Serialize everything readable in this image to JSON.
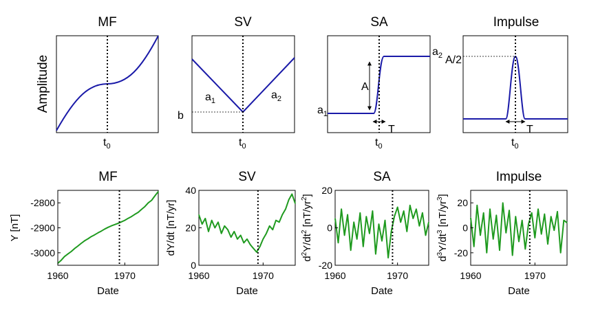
{
  "colors": {
    "top_line": "#1a1aa8",
    "bottom_line": "#1f9a1f",
    "frame": "#000000",
    "marker": "#000000"
  },
  "top_row": {
    "titles": [
      "MF",
      "SV",
      "SA",
      "Impulse"
    ],
    "ylabel": "Amplitude",
    "t0_label": "t0",
    "labels": {
      "a1": "a1",
      "a2": "a2",
      "b": "b",
      "A": "A",
      "T": "T",
      "A_half": "A/2"
    }
  },
  "chart_data": [
    {
      "type": "line",
      "title": "MF",
      "xlabel": "Date",
      "ylabel": "Y [nT]",
      "xlim": [
        1960,
        1975
      ],
      "ylim": [
        -3050,
        -2750
      ],
      "xticks": [
        1960,
        1970
      ],
      "yticks": [
        -3000,
        -2900,
        -2800
      ],
      "vline": 1969.2,
      "series": [
        {
          "values": [
            [
              1960,
              -3042
            ],
            [
              1960.5,
              -3030
            ],
            [
              1961,
              -3015
            ],
            [
              1961.5,
              -3005
            ],
            [
              1962,
              -2995
            ],
            [
              1962.5,
              -2983
            ],
            [
              1963,
              -2973
            ],
            [
              1963.5,
              -2962
            ],
            [
              1964,
              -2952
            ],
            [
              1964.5,
              -2944
            ],
            [
              1965,
              -2935
            ],
            [
              1965.5,
              -2928
            ],
            [
              1966,
              -2920
            ],
            [
              1966.5,
              -2913
            ],
            [
              1967,
              -2905
            ],
            [
              1967.5,
              -2898
            ],
            [
              1968,
              -2892
            ],
            [
              1968.5,
              -2887
            ],
            [
              1969,
              -2882
            ],
            [
              1969.5,
              -2876
            ],
            [
              1970,
              -2870
            ],
            [
              1970.5,
              -2862
            ],
            [
              1971,
              -2855
            ],
            [
              1971.5,
              -2846
            ],
            [
              1972,
              -2838
            ],
            [
              1972.5,
              -2826
            ],
            [
              1973,
              -2815
            ],
            [
              1973.5,
              -2800
            ],
            [
              1974,
              -2790
            ],
            [
              1974.5,
              -2772
            ],
            [
              1975,
              -2755
            ]
          ]
        }
      ]
    },
    {
      "type": "line",
      "title": "SV",
      "xlabel": "Date",
      "ylabel": "dY/dt [nT/yr]",
      "xlim": [
        1960,
        1975
      ],
      "ylim": [
        0,
        40
      ],
      "xticks": [
        1960,
        1970
      ],
      "yticks": [
        0,
        20,
        40
      ],
      "vline": 1969.2,
      "series": [
        {
          "values": [
            [
              1960,
              27
            ],
            [
              1960.5,
              22
            ],
            [
              1961,
              25
            ],
            [
              1961.5,
              18
            ],
            [
              1962,
              24
            ],
            [
              1962.5,
              20
            ],
            [
              1963,
              23
            ],
            [
              1963.5,
              17
            ],
            [
              1964,
              21
            ],
            [
              1964.5,
              19
            ],
            [
              1965,
              15
            ],
            [
              1965.5,
              18
            ],
            [
              1966,
              14
            ],
            [
              1966.5,
              16
            ],
            [
              1967,
              12
            ],
            [
              1967.5,
              14
            ],
            [
              1968,
              11
            ],
            [
              1968.5,
              9
            ],
            [
              1969,
              7
            ],
            [
              1969.5,
              10
            ],
            [
              1970,
              14
            ],
            [
              1970.5,
              17
            ],
            [
              1971,
              21
            ],
            [
              1971.5,
              19
            ],
            [
              1972,
              24
            ],
            [
              1972.5,
              23
            ],
            [
              1973,
              27
            ],
            [
              1973.5,
              30
            ],
            [
              1974,
              35
            ],
            [
              1974.5,
              38
            ],
            [
              1975,
              33
            ]
          ]
        }
      ]
    },
    {
      "type": "line",
      "title": "SA",
      "xlabel": "Date",
      "ylabel": "d2Y/dt2 [nT/yr2]",
      "xlim": [
        1960,
        1975
      ],
      "ylim": [
        -20,
        20
      ],
      "xticks": [
        1960,
        1970
      ],
      "yticks": [
        -20,
        0,
        20
      ],
      "vline": 1969.2,
      "series": [
        {
          "values": [
            [
              1960,
              5
            ],
            [
              1960.5,
              -8
            ],
            [
              1961,
              10
            ],
            [
              1961.5,
              -4
            ],
            [
              1962,
              7
            ],
            [
              1962.5,
              -12
            ],
            [
              1963,
              3
            ],
            [
              1963.5,
              -6
            ],
            [
              1964,
              8
            ],
            [
              1964.5,
              -10
            ],
            [
              1965,
              6
            ],
            [
              1965.5,
              -3
            ],
            [
              1966,
              9
            ],
            [
              1966.5,
              -14
            ],
            [
              1967,
              2
            ],
            [
              1967.5,
              -7
            ],
            [
              1968,
              4
            ],
            [
              1968.5,
              -16
            ],
            [
              1969,
              -2
            ],
            [
              1969.5,
              6
            ],
            [
              1970,
              11
            ],
            [
              1970.5,
              3
            ],
            [
              1971,
              9
            ],
            [
              1971.5,
              -2
            ],
            [
              1972,
              12
            ],
            [
              1972.5,
              5
            ],
            [
              1973,
              10
            ],
            [
              1973.5,
              1
            ],
            [
              1974,
              8
            ],
            [
              1974.5,
              -4
            ],
            [
              1975,
              3
            ]
          ]
        }
      ]
    },
    {
      "type": "line",
      "title": "Impulse",
      "xlabel": "Date",
      "ylabel": "d3Y/dt3 [nT/yr3]",
      "xlim": [
        1960,
        1975
      ],
      "ylim": [
        -30,
        30
      ],
      "xticks": [
        1960,
        1970
      ],
      "yticks": [
        -20,
        0,
        20
      ],
      "vline": 1969.2,
      "series": [
        {
          "values": [
            [
              1960,
              8
            ],
            [
              1960.5,
              -15
            ],
            [
              1961,
              18
            ],
            [
              1961.5,
              -6
            ],
            [
              1962,
              12
            ],
            [
              1962.5,
              -20
            ],
            [
              1963,
              15
            ],
            [
              1963.5,
              -9
            ],
            [
              1964,
              10
            ],
            [
              1964.5,
              -18
            ],
            [
              1965,
              20
            ],
            [
              1965.5,
              -4
            ],
            [
              1966,
              14
            ],
            [
              1966.5,
              -22
            ],
            [
              1967,
              9
            ],
            [
              1967.5,
              -11
            ],
            [
              1968,
              6
            ],
            [
              1968.5,
              -17
            ],
            [
              1969,
              3
            ],
            [
              1969.5,
              12
            ],
            [
              1970,
              -8
            ],
            [
              1970.5,
              15
            ],
            [
              1971,
              -5
            ],
            [
              1971.5,
              11
            ],
            [
              1972,
              -13
            ],
            [
              1972.5,
              9
            ],
            [
              1973,
              -2
            ],
            [
              1973.5,
              13
            ],
            [
              1974,
              -20
            ],
            [
              1974.5,
              6
            ],
            [
              1975,
              4
            ]
          ]
        }
      ]
    }
  ]
}
